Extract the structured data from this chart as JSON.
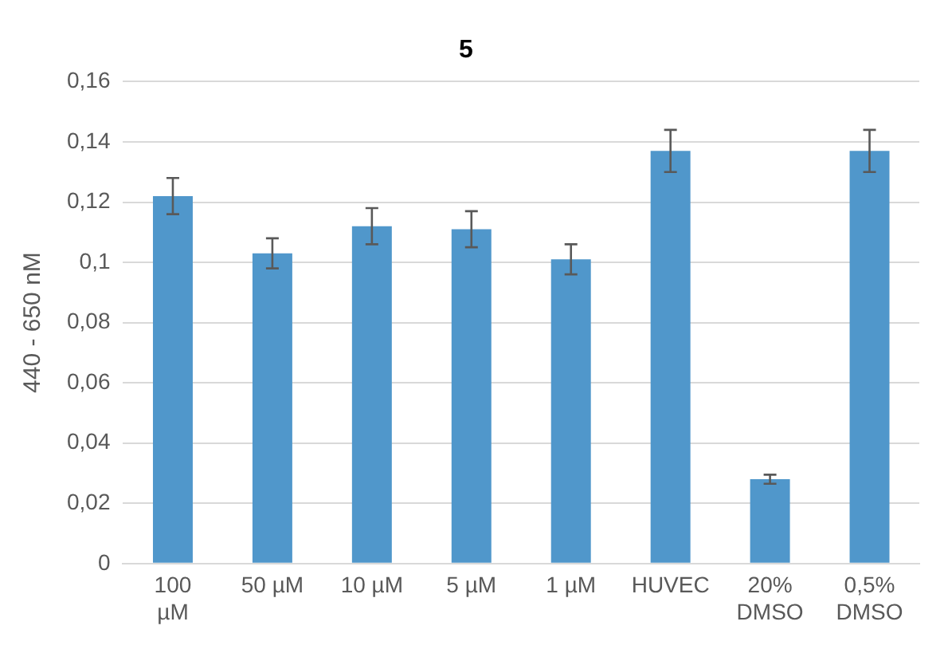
{
  "chart_data": {
    "type": "bar",
    "title": "5",
    "ylabel": "440 - 650 nM",
    "categories": [
      "100 µM",
      "50 µM",
      "10 µM",
      "5 µM",
      "1 µM",
      "HUVEC",
      "20% DMSO",
      "0,5% DMSO"
    ],
    "values": [
      0.122,
      0.103,
      0.112,
      0.111,
      0.101,
      0.137,
      0.028,
      0.137
    ],
    "errors": [
      0.006,
      0.005,
      0.006,
      0.006,
      0.005,
      0.007,
      0.0015,
      0.007
    ],
    "color": "#5097cb",
    "ylim": [
      0,
      0.16
    ],
    "yticks": [
      0,
      {
        "value": 0.02,
        "label": "0,02"
      },
      {
        "value": 0.04,
        "label": "0,04"
      },
      {
        "value": 0.06,
        "label": "0,06"
      },
      {
        "value": 0.08,
        "label": "0,08"
      },
      {
        "value": 0.1,
        "label": "0,1"
      },
      {
        "value": 0.12,
        "label": "0,12"
      },
      {
        "value": 0.14,
        "label": "0,14"
      },
      {
        "value": 0.16,
        "label": "0,16"
      }
    ],
    "grid": "y"
  }
}
